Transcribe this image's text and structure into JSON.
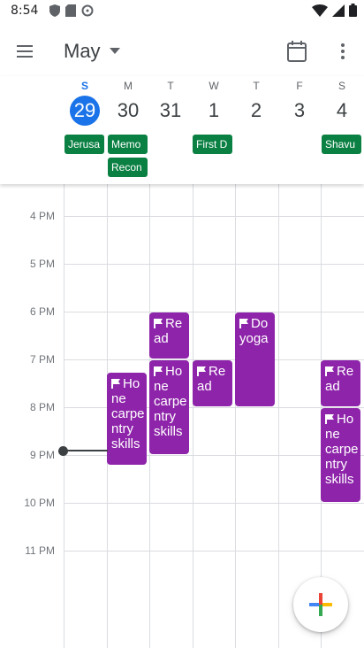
{
  "status_bar": {
    "time": "8:54"
  },
  "header": {
    "month": "May"
  },
  "colors": {
    "accent": "#1a73e8",
    "holiday": "#0b8043",
    "task": "#8e24aa"
  },
  "week": [
    {
      "dow": "S",
      "num": "29",
      "selected": true
    },
    {
      "dow": "M",
      "num": "30"
    },
    {
      "dow": "T",
      "num": "31"
    },
    {
      "dow": "W",
      "num": "1"
    },
    {
      "dow": "T",
      "num": "2"
    },
    {
      "dow": "F",
      "num": "3"
    },
    {
      "dow": "S",
      "num": "4"
    }
  ],
  "all_day_events": [
    {
      "title": "Jerusa"
    },
    {
      "title": "Memo"
    },
    {
      "title": "Recon"
    },
    {
      "title": "First D"
    },
    {
      "title": "Shavu"
    }
  ],
  "hours": [
    "4 PM",
    "5 PM",
    "6 PM",
    "7 PM",
    "8 PM",
    "9 PM",
    "10 PM",
    "11 PM"
  ],
  "events": [
    {
      "title": "Ho ne carpe ntry skills"
    },
    {
      "title": "Re ad"
    },
    {
      "title": "Ho ne carpe ntry skills"
    },
    {
      "title": "Re ad"
    },
    {
      "title": "Do yoga"
    },
    {
      "title": "Re ad"
    },
    {
      "title": "Ho ne carpe ntry skills"
    }
  ],
  "icons": {
    "menu": "menu-icon",
    "dropdown": "chevron-down-icon",
    "today": "calendar-today-icon",
    "more": "more-vert-icon",
    "fab": "add-icon"
  }
}
